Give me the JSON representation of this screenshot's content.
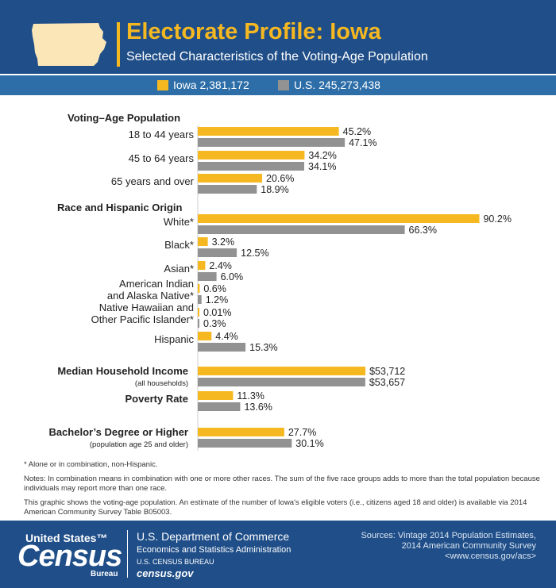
{
  "header": {
    "title": "Electorate Profile: Iowa",
    "subtitle": "Selected Characteristics of the Voting-Age Population"
  },
  "legend": {
    "iowa": "Iowa 2,381,172",
    "us": "U.S. 245,273,438"
  },
  "colors": {
    "header_bg": "#1f4e88",
    "legend_bg": "#2d6ea8",
    "accent": "#f6b821",
    "iowa": "#f6b821",
    "us": "#929292",
    "state_shape": "#fbe6b8"
  },
  "chart_data": {
    "type": "bar",
    "orientation": "horizontal",
    "series": [
      {
        "name": "Iowa 2,381,172",
        "color": "#f6b821"
      },
      {
        "name": "U.S. 245,273,438",
        "color": "#929292"
      }
    ],
    "sections": [
      {
        "title": "Voting–Age Population",
        "rows": [
          {
            "label": "18 to 44 years",
            "values": [
              45.2,
              47.1
            ],
            "labels": [
              "45.2%",
              "47.1%"
            ]
          },
          {
            "label": "45 to 64 years",
            "values": [
              34.2,
              34.1
            ],
            "labels": [
              "34.2%",
              "34.1%"
            ]
          },
          {
            "label": "65 years and over",
            "values": [
              20.6,
              18.9
            ],
            "labels": [
              "20.6%",
              "18.9%"
            ]
          }
        ]
      },
      {
        "title": "Race and Hispanic Origin",
        "rows": [
          {
            "label": "White*",
            "values": [
              90.2,
              66.3
            ],
            "labels": [
              "90.2%",
              "66.3%"
            ]
          },
          {
            "label": "Black*",
            "values": [
              3.2,
              12.5
            ],
            "labels": [
              "3.2%",
              "12.5%"
            ]
          },
          {
            "label": "Asian*",
            "values": [
              2.4,
              6.0
            ],
            "labels": [
              "2.4%",
              "6.0%"
            ]
          },
          {
            "label": "American Indian|and Alaska Native*",
            "values": [
              0.6,
              1.2
            ],
            "labels": [
              "0.6%",
              "1.2%"
            ]
          },
          {
            "label": "Native Hawaiian and|Other Pacific Islander*",
            "values": [
              0.01,
              0.3
            ],
            "labels": [
              "0.01%",
              "0.3%"
            ]
          },
          {
            "label": "Hispanic",
            "values": [
              4.4,
              15.3
            ],
            "labels": [
              "4.4%",
              "15.3%"
            ]
          }
        ]
      },
      {
        "title": "",
        "rows": [
          {
            "label": "Median Household Income",
            "sublabel": "(all households)",
            "bold": true,
            "values": [
              53712,
              53657
            ],
            "labels": [
              "$53,712",
              "$53,657"
            ]
          },
          {
            "label": "Poverty Rate",
            "bold": true,
            "values": [
              11.3,
              13.6
            ],
            "labels": [
              "11.3%",
              "13.6%"
            ]
          },
          {
            "label": "Bachelor’s Degree or Higher",
            "sublabel": "(population age 25 and older)",
            "bold": true,
            "values": [
              27.7,
              30.1
            ],
            "labels": [
              "27.7%",
              "30.1%"
            ]
          }
        ]
      }
    ]
  },
  "notes": {
    "asterisk": "* Alone or in combination, non-Hispanic.",
    "combination": "Notes: In combination means in combination with one or more other races. The sum of the five race groups adds to more than the total population because individuals may report more than one race.",
    "graphic": "This graphic shows the voting-age population. An estimate of the number of Iowa's eligible voters (i.e., citizens aged 18 and older) is available via 2014 American Community Survey Table B05003."
  },
  "footer": {
    "logo_us": "United States™",
    "logo_census": "Census",
    "logo_bureau": "Bureau",
    "dept": "U.S. Department of Commerce",
    "esa": "Economics and Statistics Administration",
    "cb": "U.S. CENSUS BUREAU",
    "site": "census.gov",
    "sources_1": "Sources: Vintage 2014 Population Estimates,",
    "sources_2": "2014 American Community Survey",
    "sources_3": "<www.census.gov/acs>"
  }
}
